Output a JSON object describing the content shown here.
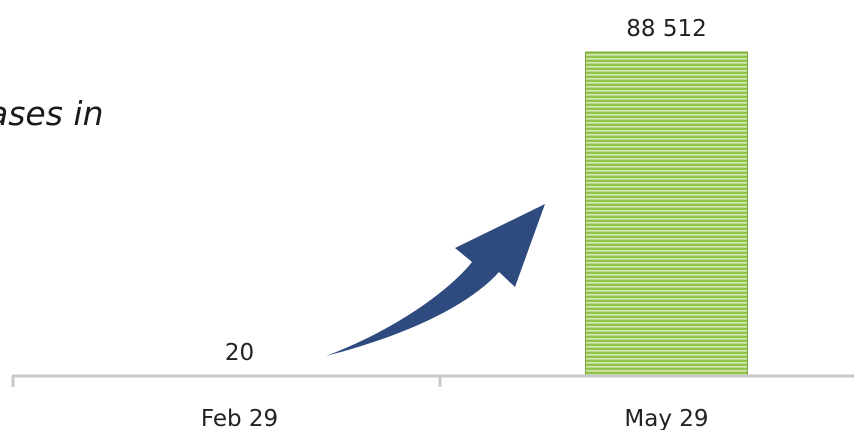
{
  "chart_data": {
    "type": "bar",
    "title": "ases in",
    "categories": [
      "Feb 29",
      "May 29"
    ],
    "values": [
      20,
      88512
    ],
    "value_labels": [
      "20",
      "88 512"
    ],
    "ylim": [
      0,
      88512
    ],
    "grid": false,
    "legend": "none",
    "annotation": "arrow-up-right",
    "colors": {
      "bar_fill": "#92c34a",
      "bar_stripe": "#ffffff",
      "bar_edge": "#7aa83a",
      "arrow": "#2f4a7f",
      "axis": "#c8c8c8",
      "text": "#222222"
    }
  }
}
